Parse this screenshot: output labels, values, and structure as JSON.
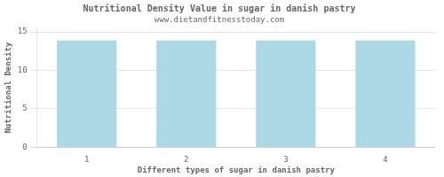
{
  "chart_data": {
    "type": "bar",
    "title": "Nutritional Density Value in sugar in danish pastry",
    "subtitle": "www.dietandfitnesstoday.com",
    "xlabel": "Different types of sugar in danish pastry",
    "ylabel": "Nutritional Density",
    "categories": [
      "1",
      "2",
      "3",
      "4"
    ],
    "values": [
      13.9,
      13.9,
      13.9,
      13.9
    ],
    "color": "#add8e6",
    "ylim": [
      0,
      15.5
    ],
    "yticks": [
      0,
      5,
      10,
      15
    ],
    "grid": true
  }
}
